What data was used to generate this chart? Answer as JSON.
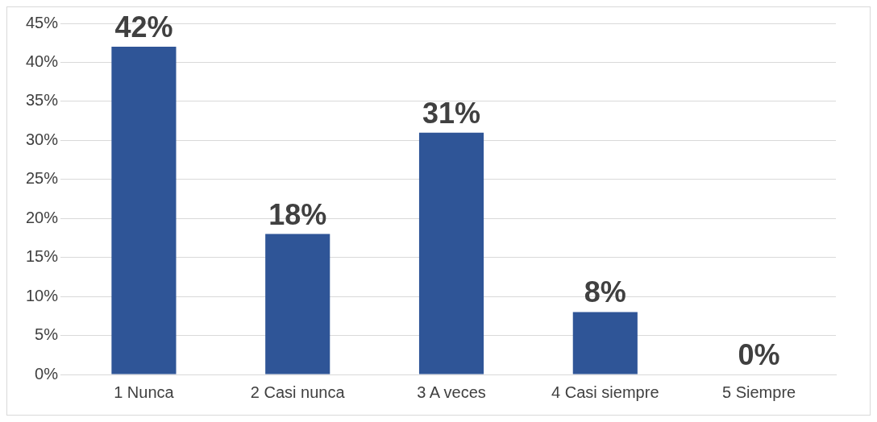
{
  "chart_data": {
    "type": "bar",
    "categories": [
      "1 Nunca",
      "2 Casi nunca",
      "3 A veces",
      "4 Casi siempre",
      "5 Siempre"
    ],
    "values": [
      42,
      18,
      31,
      8,
      0
    ],
    "value_labels": [
      "42%",
      "18%",
      "31%",
      "8%",
      "0%"
    ],
    "color": "#2f5597",
    "ylim": [
      0,
      45
    ],
    "yticks": [
      {
        "value": 0,
        "label": "0%"
      },
      {
        "value": 5,
        "label": "5%"
      },
      {
        "value": 10,
        "label": "10%"
      },
      {
        "value": 15,
        "label": "15%"
      },
      {
        "value": 20,
        "label": "20%"
      },
      {
        "value": 25,
        "label": "25%"
      },
      {
        "value": 30,
        "label": "30%"
      },
      {
        "value": 35,
        "label": "35%"
      },
      {
        "value": 40,
        "label": "40%"
      },
      {
        "value": 45,
        "label": "45%"
      }
    ],
    "grid": "y",
    "legend": false
  }
}
